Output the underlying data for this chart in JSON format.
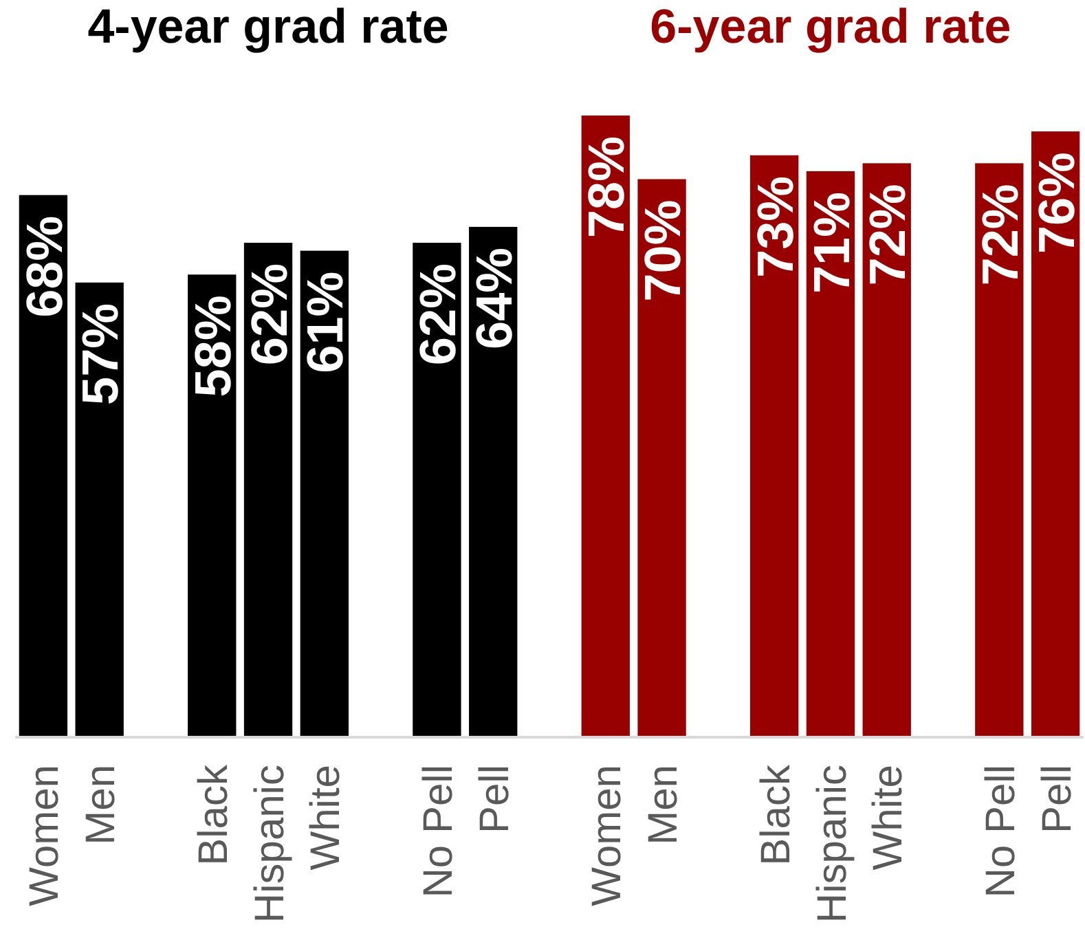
{
  "chart_data": [
    {
      "type": "bar",
      "title": "4-year grad rate",
      "color": "#000000",
      "categories": [
        "Women",
        "Men",
        null,
        "Black",
        "Hispanic",
        "White",
        null,
        "No Pell",
        "Pell"
      ],
      "values": [
        68,
        57,
        null,
        58,
        62,
        61,
        null,
        62,
        64
      ],
      "value_labels": [
        "68%",
        "57%",
        null,
        "58%",
        "62%",
        "61%",
        null,
        "62%",
        "64%"
      ]
    },
    {
      "type": "bar",
      "title": "6-year grad rate",
      "color": "#990000",
      "categories": [
        "Women",
        "Men",
        null,
        "Black",
        "Hispanic",
        "White",
        null,
        "No Pell",
        "Pell"
      ],
      "values": [
        78,
        70,
        null,
        73,
        71,
        72,
        null,
        72,
        76
      ],
      "value_labels": [
        "78%",
        "70%",
        null,
        "73%",
        "71%",
        "72%",
        null,
        "72%",
        "76%"
      ]
    }
  ]
}
